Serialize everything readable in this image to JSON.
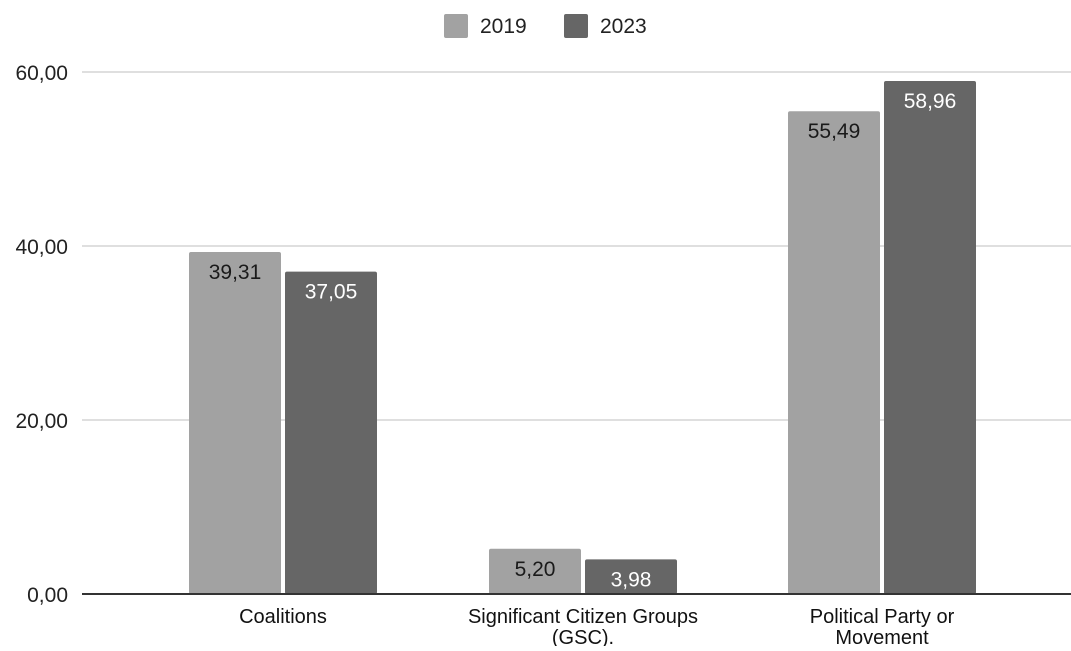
{
  "chart_data": {
    "type": "bar",
    "title": "",
    "xlabel": "",
    "ylabel": "",
    "categories": [
      "Coalitions",
      "Significant Citizen Groups (GSC).",
      "Political Party or Movement"
    ],
    "category_label_lines": [
      [
        "Coalitions"
      ],
      [
        "Significant Citizen Groups",
        "(GSC)."
      ],
      [
        "Political Party or",
        "Movement"
      ]
    ],
    "series": [
      {
        "name": "2019",
        "values": [
          39.31,
          5.2,
          55.49
        ],
        "labels": [
          "39,31",
          "5,20",
          "55,49"
        ],
        "color": "#a2a2a2",
        "label_color": "#1a1a1a"
      },
      {
        "name": "2023",
        "values": [
          37.05,
          3.98,
          58.96
        ],
        "labels": [
          "37,05",
          "3,98",
          "58,96"
        ],
        "color": "#666666",
        "label_color": "#ffffff"
      }
    ],
    "ylim": [
      0,
      60
    ],
    "yticks": [
      0,
      20,
      40,
      60
    ],
    "ytick_labels": [
      "0,00",
      "20,00",
      "40,00",
      "60,00"
    ],
    "grid": true,
    "gridline_color": "#cccccc",
    "axis_color": "#333333",
    "legend_position": "top-center"
  }
}
